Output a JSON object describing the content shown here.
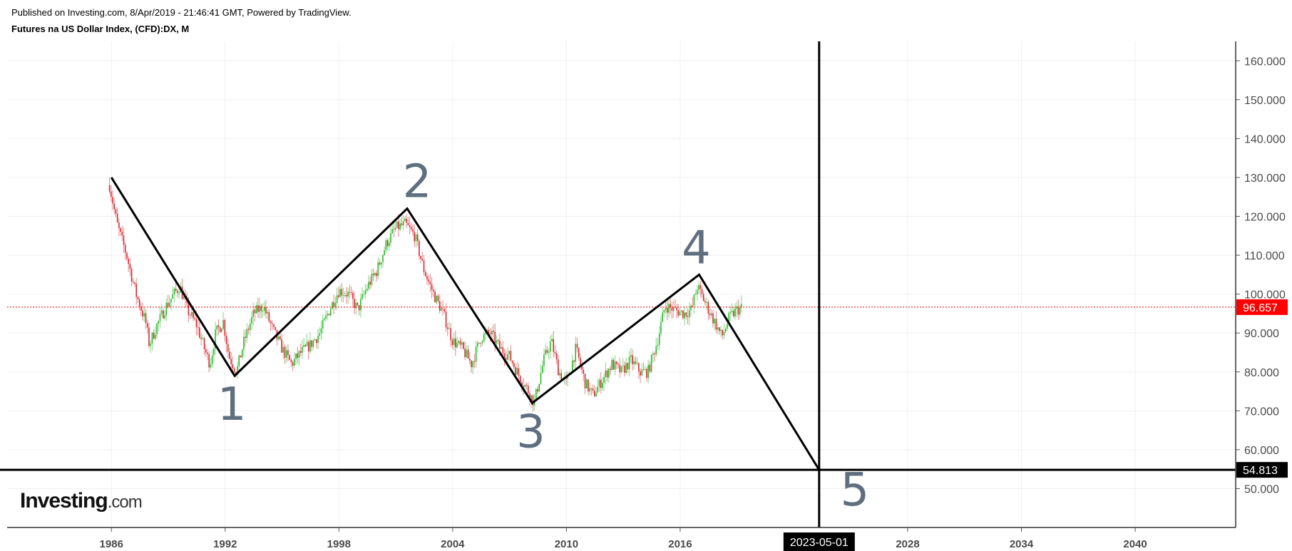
{
  "header": {
    "published": "Published on Investing.com, 8/Apr/2019 - 21:46:41 GMT, Powered by TradingView.",
    "title": "Futures na US Dollar Index, (CFD):DX, M"
  },
  "logo": {
    "main": "Investing",
    "suffix": ".com"
  },
  "colors": {
    "up": "#22b822",
    "down": "#d3232a",
    "last_price": "#ff0000",
    "drawing": "#000000",
    "grid": "#f0f0f0",
    "wave_label": "#5f6f80"
  },
  "chart_data": {
    "type": "candlestick",
    "interval": "M",
    "x_range": [
      1980.5,
      2045.3
    ],
    "y_range": [
      40,
      165
    ],
    "y_ticks": [
      50,
      60,
      70,
      80,
      90,
      100,
      110,
      120,
      130,
      140,
      150,
      160
    ],
    "y_tick_labels": [
      "50.000",
      "60.000",
      "70.000",
      "80.000",
      "90.000",
      "100.000",
      "110.000",
      "120.000",
      "130.000",
      "140.000",
      "150.000",
      "160.000"
    ],
    "x_ticks": [
      1986,
      1992,
      1998,
      2004,
      2010,
      2016,
      2028,
      2034,
      2040
    ],
    "x_tick_labels": [
      "1986",
      "1992",
      "1998",
      "2004",
      "2010",
      "2016",
      "2028",
      "2034",
      "2040"
    ],
    "grid": true,
    "price_path": [
      [
        1985.9,
        128
      ],
      [
        1986.3,
        118
      ],
      [
        1986.8,
        110
      ],
      [
        1987.3,
        100
      ],
      [
        1987.8,
        93
      ],
      [
        1988.0,
        87
      ],
      [
        1988.4,
        92
      ],
      [
        1988.9,
        97
      ],
      [
        1989.3,
        100
      ],
      [
        1989.6,
        102
      ],
      [
        1990.0,
        96
      ],
      [
        1990.5,
        92
      ],
      [
        1990.9,
        86
      ],
      [
        1991.2,
        82
      ],
      [
        1991.5,
        90
      ],
      [
        1991.9,
        93
      ],
      [
        1992.2,
        84
      ],
      [
        1992.6,
        80
      ],
      [
        1993.0,
        88
      ],
      [
        1993.5,
        95
      ],
      [
        1994.0,
        97
      ],
      [
        1994.5,
        91
      ],
      [
        1995.0,
        86
      ],
      [
        1995.5,
        82
      ],
      [
        1996.0,
        85
      ],
      [
        1996.5,
        87
      ],
      [
        1997.0,
        90
      ],
      [
        1997.5,
        96
      ],
      [
        1998.0,
        101
      ],
      [
        1998.5,
        100
      ],
      [
        1999.0,
        96
      ],
      [
        1999.5,
        102
      ],
      [
        2000.0,
        106
      ],
      [
        2000.5,
        113
      ],
      [
        2001.0,
        117
      ],
      [
        2001.5,
        118
      ],
      [
        2002.0,
        115
      ],
      [
        2002.5,
        106
      ],
      [
        2003.0,
        100
      ],
      [
        2003.5,
        95
      ],
      [
        2004.0,
        88
      ],
      [
        2004.5,
        86
      ],
      [
        2005.0,
        82
      ],
      [
        2005.5,
        89
      ],
      [
        2006.0,
        90
      ],
      [
        2006.5,
        86
      ],
      [
        2007.0,
        84
      ],
      [
        2007.5,
        79
      ],
      [
        2008.0,
        75
      ],
      [
        2008.3,
        72
      ],
      [
        2008.8,
        83
      ],
      [
        2009.2,
        88
      ],
      [
        2009.6,
        80
      ],
      [
        2010.0,
        77
      ],
      [
        2010.5,
        86
      ],
      [
        2011.0,
        77
      ],
      [
        2011.4,
        74
      ],
      [
        2011.9,
        78
      ],
      [
        2012.4,
        82
      ],
      [
        2012.9,
        80
      ],
      [
        2013.4,
        83
      ],
      [
        2013.9,
        80
      ],
      [
        2014.3,
        80
      ],
      [
        2014.8,
        88
      ],
      [
        2015.2,
        97
      ],
      [
        2015.7,
        96
      ],
      [
        2016.2,
        95
      ],
      [
        2016.6,
        96
      ],
      [
        2016.9,
        102
      ],
      [
        2017.4,
        97
      ],
      [
        2017.9,
        92
      ],
      [
        2018.2,
        89
      ],
      [
        2018.6,
        94
      ],
      [
        2019.0,
        96
      ],
      [
        2019.3,
        96.66
      ]
    ],
    "last_price": 96.657,
    "last_price_label": "96.657",
    "elliott_wave": {
      "points": [
        {
          "label": "",
          "date": 1986.0,
          "value": 130
        },
        {
          "label": "1",
          "date": 1992.5,
          "value": 79
        },
        {
          "label": "2",
          "date": 2001.6,
          "value": 122
        },
        {
          "label": "3",
          "date": 2008.2,
          "value": 72
        },
        {
          "label": "4",
          "date": 2017.0,
          "value": 105
        },
        {
          "label": "5",
          "date": 2023.33,
          "value": 54.813
        }
      ],
      "wave_labels": [
        "1",
        "2",
        "3",
        "4",
        "5"
      ]
    },
    "target_price": 54.813,
    "target_price_label": "54.813",
    "target_date": 2023.33,
    "target_date_label": "2023-05-01"
  }
}
